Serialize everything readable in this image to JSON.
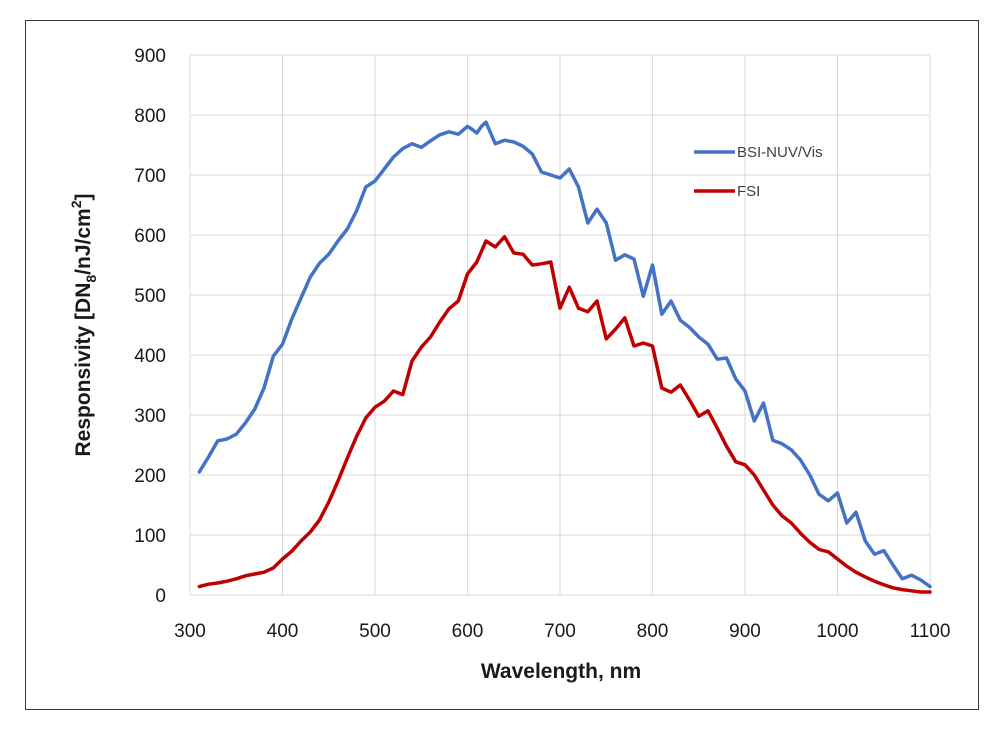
{
  "chart_data": {
    "type": "line",
    "title": "",
    "xlabel": "Wavelength, nm",
    "ylabel": {
      "main": "Responsivity [DN",
      "sub": "8",
      "mid": "/nJ/cm",
      "sup": "2",
      "end": "]"
    },
    "xlim": [
      300,
      1100
    ],
    "ylim": [
      0,
      900
    ],
    "xticks": [
      300,
      400,
      500,
      600,
      700,
      800,
      900,
      1000,
      1100
    ],
    "yticks": [
      0,
      100,
      200,
      300,
      400,
      500,
      600,
      700,
      800,
      900
    ],
    "grid": true,
    "legend_position": "top-right",
    "series": [
      {
        "name": "BSI-NUV/Vis",
        "color": "#4472C4",
        "points": [
          [
            310,
            205
          ],
          [
            320,
            230
          ],
          [
            330,
            257
          ],
          [
            340,
            260
          ],
          [
            350,
            268
          ],
          [
            360,
            287
          ],
          [
            370,
            310
          ],
          [
            380,
            345
          ],
          [
            390,
            398
          ],
          [
            400,
            418
          ],
          [
            410,
            460
          ],
          [
            420,
            495
          ],
          [
            430,
            530
          ],
          [
            440,
            553
          ],
          [
            450,
            568
          ],
          [
            460,
            590
          ],
          [
            470,
            610
          ],
          [
            480,
            640
          ],
          [
            490,
            680
          ],
          [
            500,
            690
          ],
          [
            510,
            710
          ],
          [
            520,
            730
          ],
          [
            530,
            744
          ],
          [
            540,
            752
          ],
          [
            550,
            746
          ],
          [
            560,
            757
          ],
          [
            570,
            767
          ],
          [
            580,
            772
          ],
          [
            590,
            768
          ],
          [
            600,
            781
          ],
          [
            605,
            776
          ],
          [
            610,
            770
          ],
          [
            615,
            781
          ],
          [
            620,
            788
          ],
          [
            625,
            770
          ],
          [
            630,
            752
          ],
          [
            640,
            758
          ],
          [
            650,
            755
          ],
          [
            660,
            748
          ],
          [
            670,
            735
          ],
          [
            680,
            705
          ],
          [
            690,
            700
          ],
          [
            700,
            695
          ],
          [
            710,
            710
          ],
          [
            720,
            680
          ],
          [
            730,
            620
          ],
          [
            740,
            643
          ],
          [
            750,
            620
          ],
          [
            760,
            558
          ],
          [
            770,
            567
          ],
          [
            780,
            560
          ],
          [
            790,
            498
          ],
          [
            800,
            550
          ],
          [
            810,
            468
          ],
          [
            820,
            490
          ],
          [
            830,
            458
          ],
          [
            840,
            446
          ],
          [
            850,
            430
          ],
          [
            860,
            418
          ],
          [
            870,
            393
          ],
          [
            880,
            395
          ],
          [
            890,
            360
          ],
          [
            900,
            340
          ],
          [
            910,
            290
          ],
          [
            920,
            320
          ],
          [
            930,
            258
          ],
          [
            940,
            252
          ],
          [
            950,
            242
          ],
          [
            960,
            225
          ],
          [
            970,
            200
          ],
          [
            980,
            168
          ],
          [
            990,
            157
          ],
          [
            1000,
            170
          ],
          [
            1010,
            120
          ],
          [
            1020,
            138
          ],
          [
            1030,
            90
          ],
          [
            1040,
            68
          ],
          [
            1050,
            74
          ],
          [
            1060,
            50
          ],
          [
            1070,
            27
          ],
          [
            1080,
            33
          ],
          [
            1090,
            25
          ],
          [
            1100,
            14
          ]
        ]
      },
      {
        "name": "FSI",
        "color": "#C00000",
        "points": [
          [
            310,
            14
          ],
          [
            320,
            18
          ],
          [
            330,
            20
          ],
          [
            340,
            23
          ],
          [
            350,
            27
          ],
          [
            360,
            32
          ],
          [
            370,
            35
          ],
          [
            380,
            38
          ],
          [
            390,
            45
          ],
          [
            400,
            60
          ],
          [
            410,
            73
          ],
          [
            420,
            90
          ],
          [
            430,
            105
          ],
          [
            440,
            125
          ],
          [
            450,
            155
          ],
          [
            460,
            190
          ],
          [
            470,
            228
          ],
          [
            480,
            264
          ],
          [
            490,
            295
          ],
          [
            500,
            313
          ],
          [
            510,
            323
          ],
          [
            520,
            340
          ],
          [
            530,
            334
          ],
          [
            540,
            390
          ],
          [
            550,
            413
          ],
          [
            560,
            430
          ],
          [
            570,
            455
          ],
          [
            580,
            477
          ],
          [
            590,
            490
          ],
          [
            600,
            535
          ],
          [
            610,
            555
          ],
          [
            620,
            590
          ],
          [
            630,
            580
          ],
          [
            640,
            597
          ],
          [
            650,
            570
          ],
          [
            660,
            568
          ],
          [
            670,
            550
          ],
          [
            680,
            552
          ],
          [
            690,
            555
          ],
          [
            700,
            478
          ],
          [
            710,
            513
          ],
          [
            720,
            478
          ],
          [
            730,
            472
          ],
          [
            740,
            490
          ],
          [
            750,
            427
          ],
          [
            760,
            443
          ],
          [
            770,
            462
          ],
          [
            780,
            415
          ],
          [
            790,
            420
          ],
          [
            800,
            415
          ],
          [
            810,
            345
          ],
          [
            820,
            338
          ],
          [
            830,
            350
          ],
          [
            840,
            325
          ],
          [
            850,
            298
          ],
          [
            860,
            307
          ],
          [
            870,
            278
          ],
          [
            880,
            248
          ],
          [
            890,
            222
          ],
          [
            900,
            217
          ],
          [
            910,
            200
          ],
          [
            920,
            175
          ],
          [
            930,
            150
          ],
          [
            940,
            132
          ],
          [
            950,
            120
          ],
          [
            960,
            103
          ],
          [
            970,
            88
          ],
          [
            980,
            76
          ],
          [
            990,
            72
          ],
          [
            1000,
            60
          ],
          [
            1010,
            48
          ],
          [
            1020,
            38
          ],
          [
            1030,
            30
          ],
          [
            1040,
            23
          ],
          [
            1050,
            17
          ],
          [
            1060,
            12
          ],
          [
            1070,
            9
          ],
          [
            1080,
            7
          ],
          [
            1090,
            5
          ],
          [
            1100,
            5
          ]
        ]
      }
    ]
  }
}
